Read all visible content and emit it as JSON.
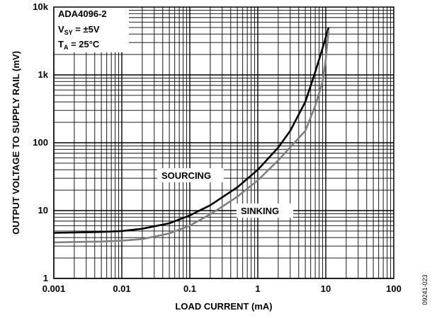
{
  "chart_data": {
    "type": "line",
    "xscale": "log",
    "yscale": "log",
    "xlim": [
      0.001,
      100
    ],
    "ylim": [
      1,
      10000
    ],
    "xlabel": "LOAD CURRENT (mA)",
    "ylabel": "OUTPUT VOLTAGE TO SUPPLY RAIL (mV)",
    "x_tick_labels": [
      "0.001",
      "0.01",
      "0.1",
      "1",
      "10",
      "100"
    ],
    "y_tick_labels": [
      "1",
      "10",
      "100",
      "1k",
      "10k"
    ],
    "grid": true,
    "info_box": [
      "ADA4096-2",
      "V_SY = ±5V",
      "T_A = 25°C"
    ],
    "series": [
      {
        "name": "SOURCING",
        "color": "#000000",
        "x": [
          0.001,
          0.002,
          0.005,
          0.01,
          0.02,
          0.05,
          0.1,
          0.2,
          0.5,
          1,
          2,
          3,
          5,
          7,
          9,
          11
        ],
        "y": [
          4.7,
          4.75,
          4.85,
          5.0,
          5.4,
          6.5,
          8.5,
          12,
          22,
          40,
          85,
          150,
          400,
          1100,
          2500,
          5000
        ]
      },
      {
        "name": "SINKING",
        "color": "#808080",
        "x": [
          0.001,
          0.002,
          0.005,
          0.01,
          0.02,
          0.05,
          0.1,
          0.2,
          0.5,
          1,
          2,
          5,
          7,
          9,
          10,
          11
        ],
        "y": [
          3.4,
          3.45,
          3.5,
          3.6,
          3.8,
          4.6,
          6.0,
          8.8,
          16,
          28,
          55,
          150,
          350,
          800,
          1700,
          4500
        ]
      }
    ],
    "figure_id": "09241-023"
  }
}
